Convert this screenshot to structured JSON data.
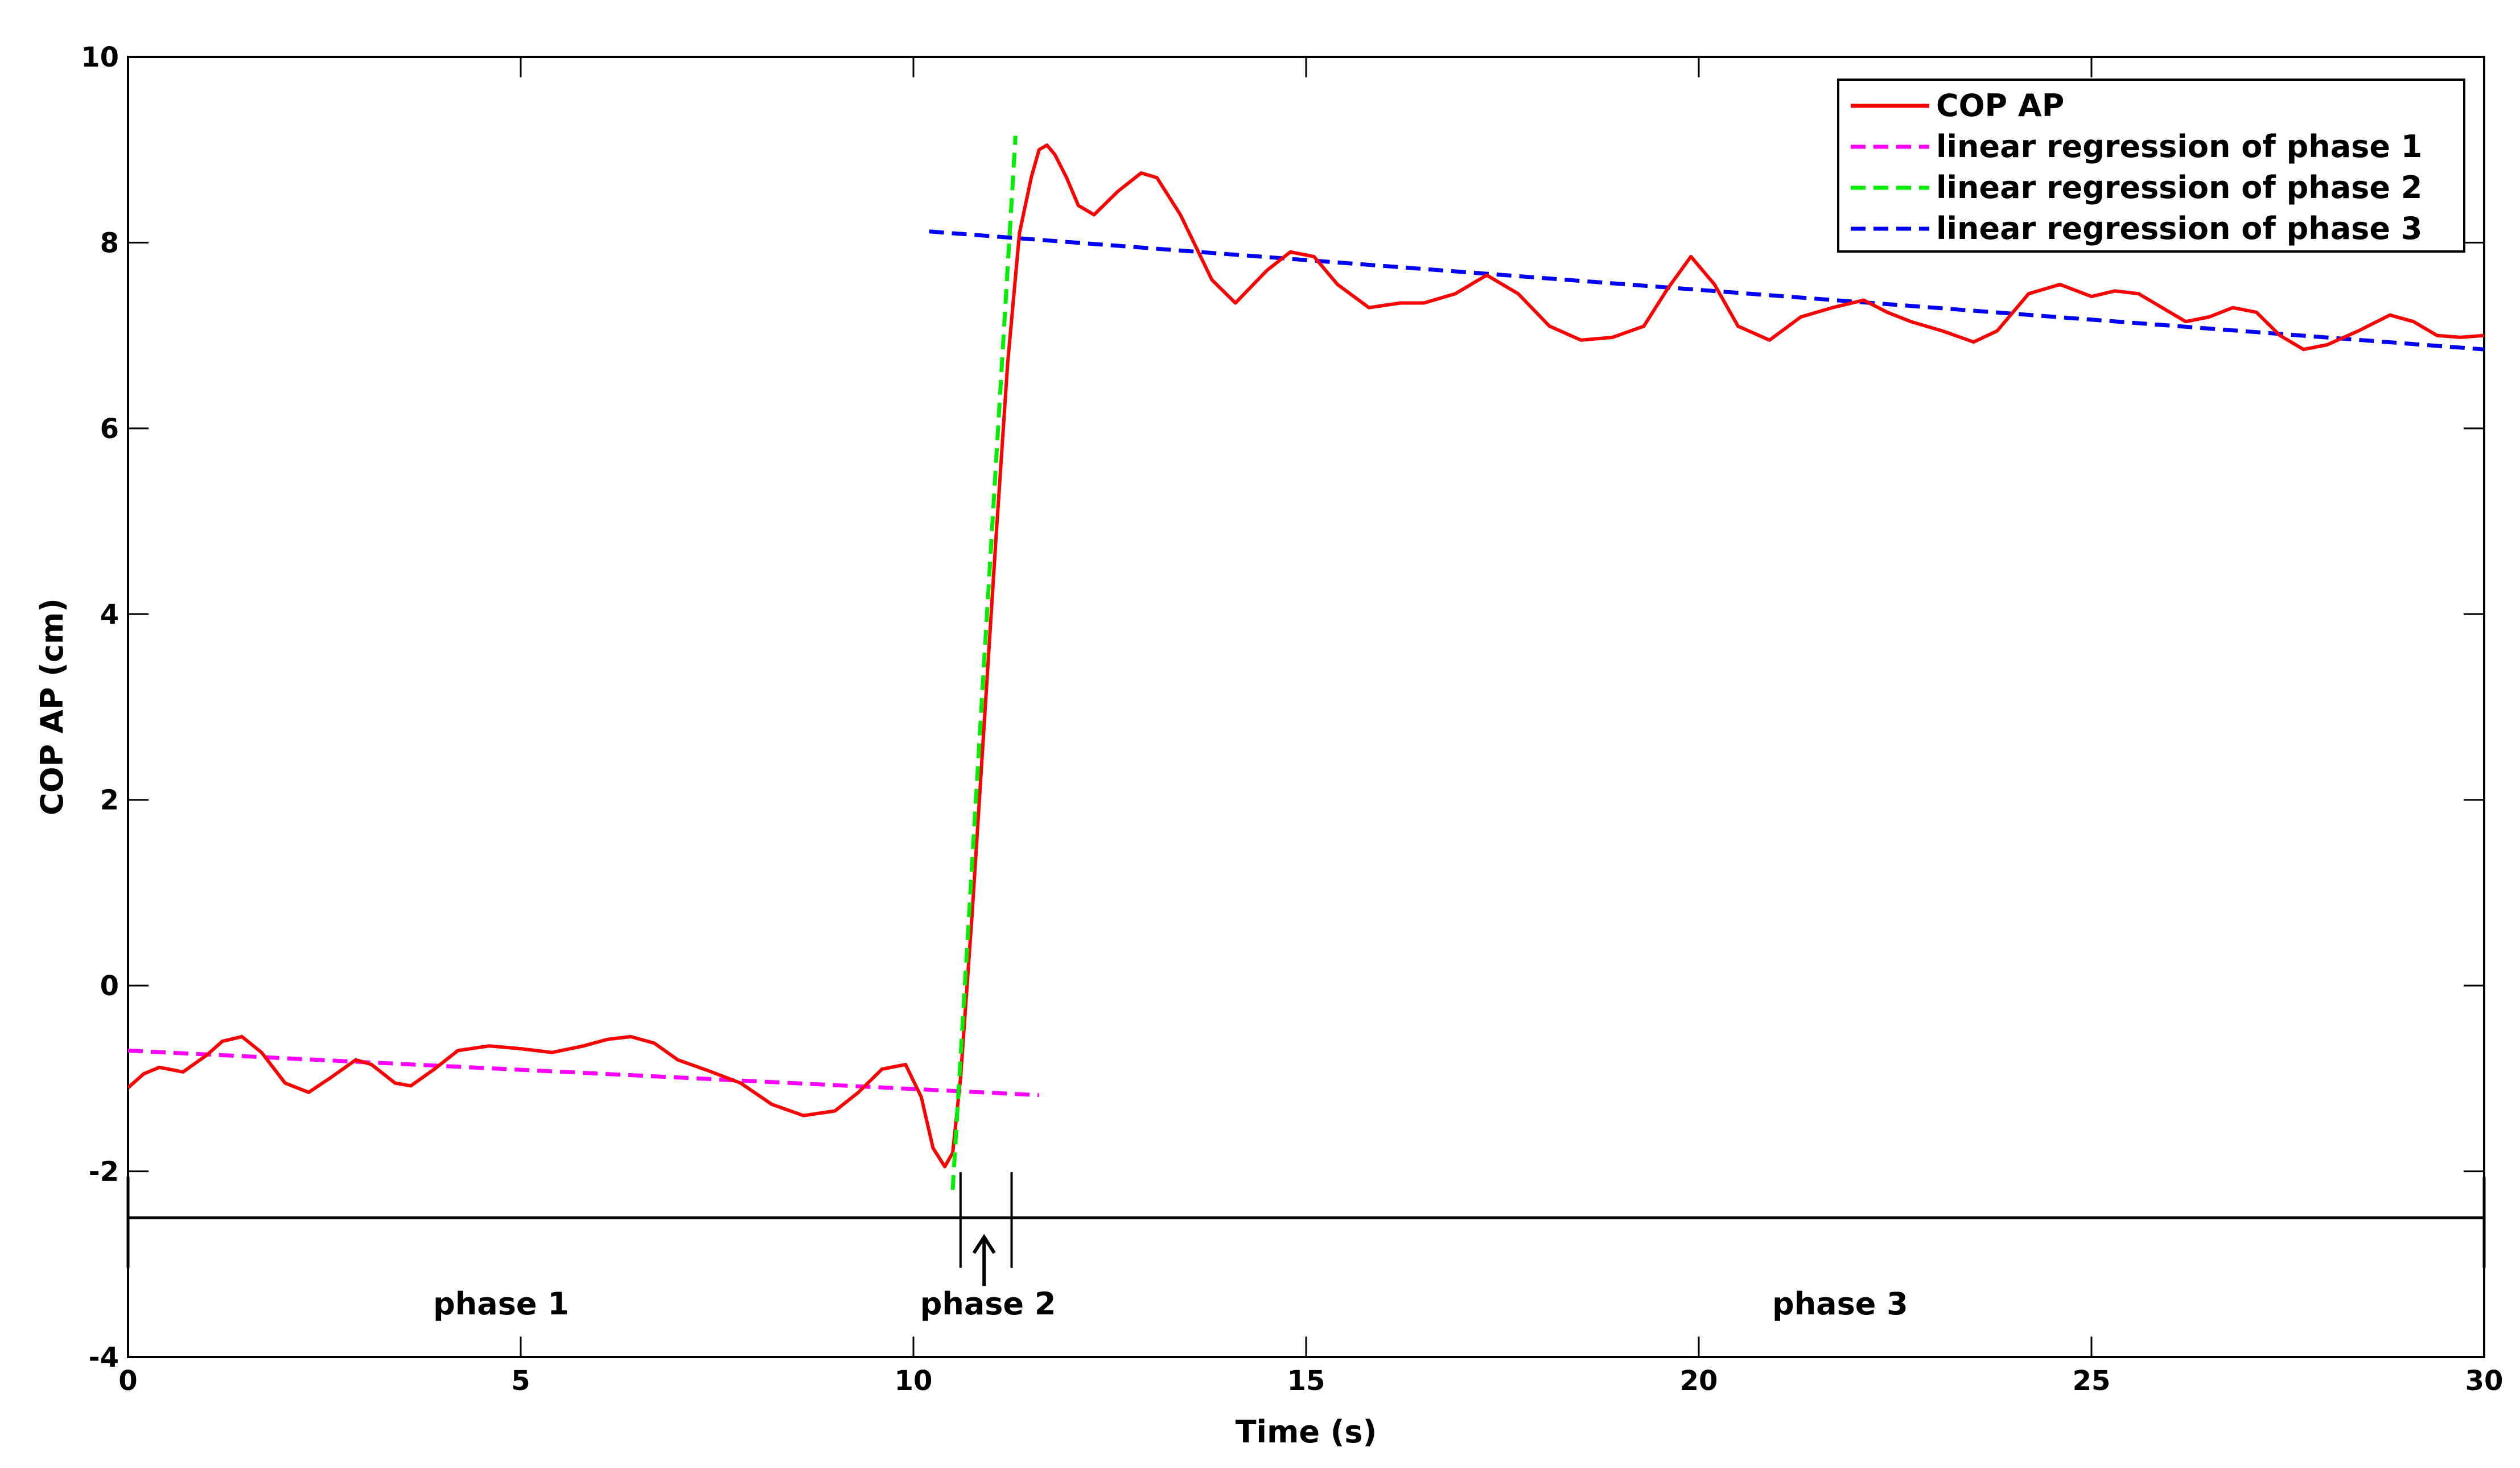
{
  "chart_data": {
    "type": "line",
    "title": "",
    "xlabel": "Time (s)",
    "ylabel": "COP AP (cm)",
    "xlim": [
      0,
      30
    ],
    "ylim": [
      -4,
      10
    ],
    "xticks": [
      0,
      5,
      10,
      15,
      20,
      25,
      30
    ],
    "yticks": [
      -4,
      -2,
      0,
      2,
      4,
      6,
      8,
      10
    ],
    "grid": false,
    "legend_position": "top-right",
    "series": [
      {
        "name": "COP AP",
        "color": "#ff0000",
        "style": "solid",
        "x": [
          0,
          0.2,
          0.4,
          0.7,
          1.0,
          1.2,
          1.45,
          1.7,
          2.0,
          2.3,
          2.6,
          2.9,
          3.1,
          3.4,
          3.6,
          3.9,
          4.2,
          4.6,
          5.0,
          5.4,
          5.8,
          6.1,
          6.4,
          6.7,
          7.0,
          7.4,
          7.8,
          8.2,
          8.6,
          9.0,
          9.3,
          9.6,
          9.9,
          10.1,
          10.25,
          10.4,
          10.5,
          10.6,
          10.75,
          10.9,
          11.05,
          11.2,
          11.35,
          11.5,
          11.6,
          11.7,
          11.8,
          11.95,
          12.1,
          12.3,
          12.6,
          12.9,
          13.1,
          13.4,
          13.8,
          14.1,
          14.5,
          14.8,
          15.1,
          15.4,
          15.8,
          16.2,
          16.5,
          16.9,
          17.3,
          17.7,
          18.1,
          18.5,
          18.9,
          19.3,
          19.6,
          19.9,
          20.2,
          20.5,
          20.9,
          21.3,
          21.7,
          22.1,
          22.4,
          22.7,
          23.1,
          23.5,
          23.8,
          24.2,
          24.6,
          25.0,
          25.3,
          25.6,
          25.9,
          26.2,
          26.5,
          26.8,
          27.1,
          27.4,
          27.7,
          28.0,
          28.4,
          28.8,
          29.1,
          29.4,
          29.7,
          30.0
        ],
        "y": [
          -1.1,
          -0.95,
          -0.88,
          -0.93,
          -0.75,
          -0.6,
          -0.55,
          -0.72,
          -1.05,
          -1.15,
          -0.98,
          -0.8,
          -0.85,
          -1.05,
          -1.08,
          -0.9,
          -0.7,
          -0.65,
          -0.68,
          -0.72,
          -0.65,
          -0.58,
          -0.55,
          -0.62,
          -0.8,
          -0.92,
          -1.05,
          -1.28,
          -1.4,
          -1.35,
          -1.15,
          -0.9,
          -0.85,
          -1.2,
          -1.75,
          -1.95,
          -1.8,
          -1.0,
          0.8,
          2.8,
          4.8,
          6.7,
          8.1,
          8.7,
          9.0,
          9.05,
          8.95,
          8.7,
          8.4,
          8.3,
          8.55,
          8.75,
          8.7,
          8.3,
          7.6,
          7.35,
          7.7,
          7.9,
          7.85,
          7.55,
          7.3,
          7.35,
          7.35,
          7.45,
          7.65,
          7.45,
          7.1,
          6.95,
          6.98,
          7.1,
          7.5,
          7.85,
          7.55,
          7.1,
          6.95,
          7.2,
          7.3,
          7.38,
          7.25,
          7.15,
          7.05,
          6.93,
          7.05,
          7.45,
          7.55,
          7.42,
          7.48,
          7.45,
          7.3,
          7.15,
          7.2,
          7.3,
          7.25,
          7.0,
          6.85,
          6.9,
          7.05,
          7.22,
          7.15,
          7.0,
          6.98,
          7.0
        ]
      },
      {
        "name": "linear regression of phase 1",
        "color": "#ff00ff",
        "style": "dashed",
        "x": [
          0,
          11.6
        ],
        "y": [
          -0.7,
          -1.18
        ]
      },
      {
        "name": "linear regression of phase 2",
        "color": "#00ee00",
        "style": "dashed",
        "x": [
          10.5,
          11.3
        ],
        "y": [
          -2.2,
          9.15
        ]
      },
      {
        "name": "linear regression of phase 3",
        "color": "#0000ff",
        "style": "dashed",
        "x": [
          10.2,
          30
        ],
        "y": [
          8.12,
          6.85
        ]
      }
    ],
    "phase_bar": {
      "y": -2.5,
      "x_start": 0,
      "x_end": 30,
      "boundaries": [
        10.6,
        11.25
      ],
      "arrow_x": 10.9,
      "labels": [
        {
          "text": "phase 1",
          "x": 4.75
        },
        {
          "text": "phase 2",
          "x": 10.95
        },
        {
          "text": "phase 3",
          "x": 21.8
        }
      ]
    }
  }
}
